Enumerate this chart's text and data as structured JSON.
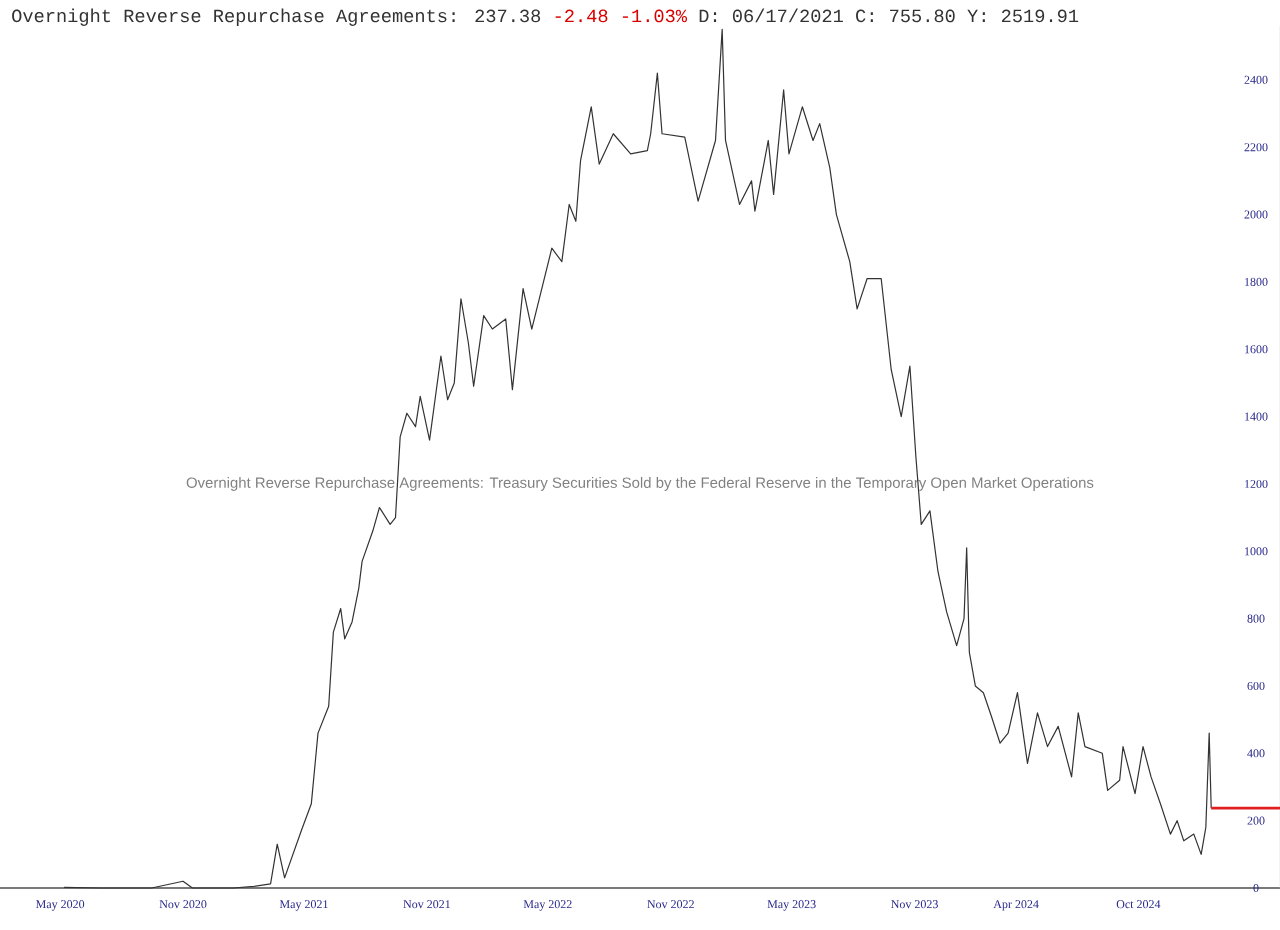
{
  "chart_data": {
    "type": "line",
    "title": "Overnight Reverse Repurchase Agreements: 237.38",
    "subtitle": "Overnight Reverse Repurchase Agreements: Treasury Securities Sold by the Federal Reserve in the Temporary Open Market Operations",
    "annotations": [
      "-2.48 -1.03%",
      "D: 06/17/2021 C:   755.80 Y:  2519.91"
    ],
    "xlim": [
      "2020-02-01",
      "2025-05-01"
    ],
    "ylim": [
      0,
      2560
    ],
    "xticks": [
      {
        "value": "2020-05-01",
        "label": "May 2020"
      },
      {
        "value": "2020-11-01",
        "label": "Nov 2020"
      },
      {
        "value": "2021-05-01",
        "label": "May 2021"
      },
      {
        "value": "2021-11-01",
        "label": "Nov 2021"
      },
      {
        "value": "2022-05-01",
        "label": "May 2022"
      },
      {
        "value": "2022-11-01",
        "label": "Nov 2022"
      },
      {
        "value": "2023-05-01",
        "label": "May 2023"
      },
      {
        "value": "2023-11-01",
        "label": "Nov 2023"
      },
      {
        "value": "2024-04-01",
        "label": "Apr 2024"
      },
      {
        "value": "2024-10-01",
        "label": "Oct 2024"
      }
    ],
    "yticks": [
      0,
      200,
      400,
      600,
      800,
      1000,
      1200,
      1400,
      1600,
      1800,
      2000,
      2200,
      2400
    ],
    "series": [
      {
        "color": "#333333",
        "x": [
          "2020-05-07",
          "2020-07-01",
          "2020-09-15",
          "2020-11-01",
          "2020-11-15",
          "2021-01-15",
          "2021-02-15",
          "2021-03-12",
          "2021-03-22",
          "2021-04-02",
          "2021-04-27",
          "2021-05-12",
          "2021-05-22",
          "2021-06-07",
          "2021-06-14",
          "2021-06-25",
          "2021-07-01",
          "2021-07-12",
          "2021-07-22",
          "2021-07-27",
          "2021-08-12",
          "2021-08-22",
          "2021-09-07",
          "2021-09-15",
          "2021-09-22",
          "2021-10-02",
          "2021-10-15",
          "2021-10-22",
          "2021-11-05",
          "2021-11-22",
          "2021-12-02",
          "2021-12-12",
          "2021-12-22",
          "2022-01-02",
          "2022-01-10",
          "2022-01-25",
          "2022-02-07",
          "2022-02-27",
          "2022-03-09",
          "2022-03-25",
          "2022-04-07",
          "2022-05-07",
          "2022-05-22",
          "2022-06-02",
          "2022-06-12",
          "2022-06-19",
          "2022-07-05",
          "2022-07-17",
          "2022-08-07",
          "2022-09-02",
          "2022-09-27",
          "2022-10-02",
          "2022-10-12",
          "2022-10-19",
          "2022-11-22",
          "2022-12-12",
          "2023-01-07",
          "2023-01-17",
          "2023-01-22",
          "2023-02-12",
          "2023-03-02",
          "2023-03-07",
          "2023-03-27",
          "2023-04-04",
          "2023-04-19",
          "2023-04-27",
          "2023-05-17",
          "2023-06-02",
          "2023-06-12",
          "2023-06-27",
          "2023-07-07",
          "2023-07-27",
          "2023-08-07",
          "2023-08-22",
          "2023-09-12",
          "2023-09-27",
          "2023-10-12",
          "2023-10-25",
          "2023-11-03",
          "2023-11-11",
          "2023-11-24",
          "2023-12-06",
          "2023-12-19",
          "2024-01-03",
          "2024-01-14",
          "2024-01-18",
          "2024-01-22",
          "2024-01-31",
          "2024-02-12",
          "2024-02-24",
          "2024-03-08",
          "2024-03-20",
          "2024-04-03",
          "2024-04-18",
          "2024-05-03",
          "2024-05-18",
          "2024-06-03",
          "2024-06-23",
          "2024-07-03",
          "2024-07-13",
          "2024-08-08",
          "2024-08-16",
          "2024-09-03",
          "2024-09-08",
          "2024-09-26",
          "2024-10-08",
          "2024-10-20",
          "2024-11-03",
          "2024-11-18",
          "2024-11-28",
          "2024-12-08",
          "2024-12-23",
          "2025-01-03",
          "2025-01-10",
          "2025-01-15",
          "2025-01-18"
        ],
        "values": [
          2,
          0,
          0,
          20,
          0,
          0,
          5,
          12,
          130,
          30,
          170,
          250,
          460,
          540,
          760,
          830,
          740,
          790,
          890,
          970,
          1060,
          1130,
          1080,
          1100,
          1340,
          1410,
          1370,
          1460,
          1330,
          1580,
          1450,
          1500,
          1750,
          1620,
          1490,
          1700,
          1660,
          1690,
          1480,
          1780,
          1660,
          1900,
          1860,
          2030,
          1980,
          2160,
          2320,
          2150,
          2240,
          2180,
          2190,
          2240,
          2420,
          2240,
          2230,
          2040,
          2220,
          2550,
          2220,
          2030,
          2100,
          2010,
          2220,
          2060,
          2370,
          2180,
          2320,
          2220,
          2270,
          2140,
          2000,
          1860,
          1720,
          1810,
          1810,
          1540,
          1400,
          1550,
          1280,
          1080,
          1120,
          940,
          820,
          720,
          800,
          1010,
          700,
          600,
          580,
          510,
          430,
          460,
          580,
          370,
          520,
          420,
          480,
          330,
          520,
          420,
          400,
          290,
          320,
          420,
          280,
          420,
          330,
          250,
          160,
          200,
          140,
          160,
          100,
          180,
          460,
          237
        ]
      },
      {
        "color": "#e02020",
        "x": [
          "2025-01-18",
          "2025-05-01"
        ],
        "values": [
          237,
          237
        ]
      }
    ]
  }
}
